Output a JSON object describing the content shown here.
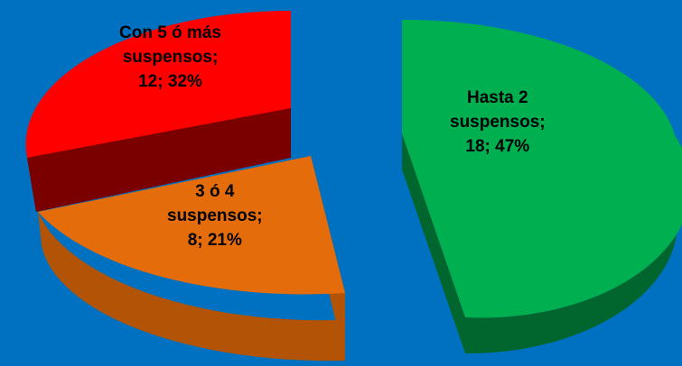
{
  "chart_data": {
    "type": "pie",
    "style": "3d-exploded",
    "slices": [
      {
        "key": "hasta2",
        "label_lines": [
          "Hasta 2",
          "suspensos;",
          "18; 47%"
        ],
        "value": 18,
        "percent": 47,
        "color": "#00b050",
        "side_color": "#00662e"
      },
      {
        "key": "tres_cuatro",
        "label_lines": [
          "3 ó 4",
          "suspensos;",
          "8; 21%"
        ],
        "value": 8,
        "percent": 21,
        "color": "#e46c0a",
        "side_color": "#b35305"
      },
      {
        "key": "cinco_mas",
        "label_lines": [
          "Con 5 ó más",
          "suspensos;",
          "12; 32%"
        ],
        "value": 12,
        "percent": 32,
        "color": "#ff0000",
        "side_color": "#990000"
      }
    ],
    "legend": "none",
    "background": "#0070c0"
  }
}
